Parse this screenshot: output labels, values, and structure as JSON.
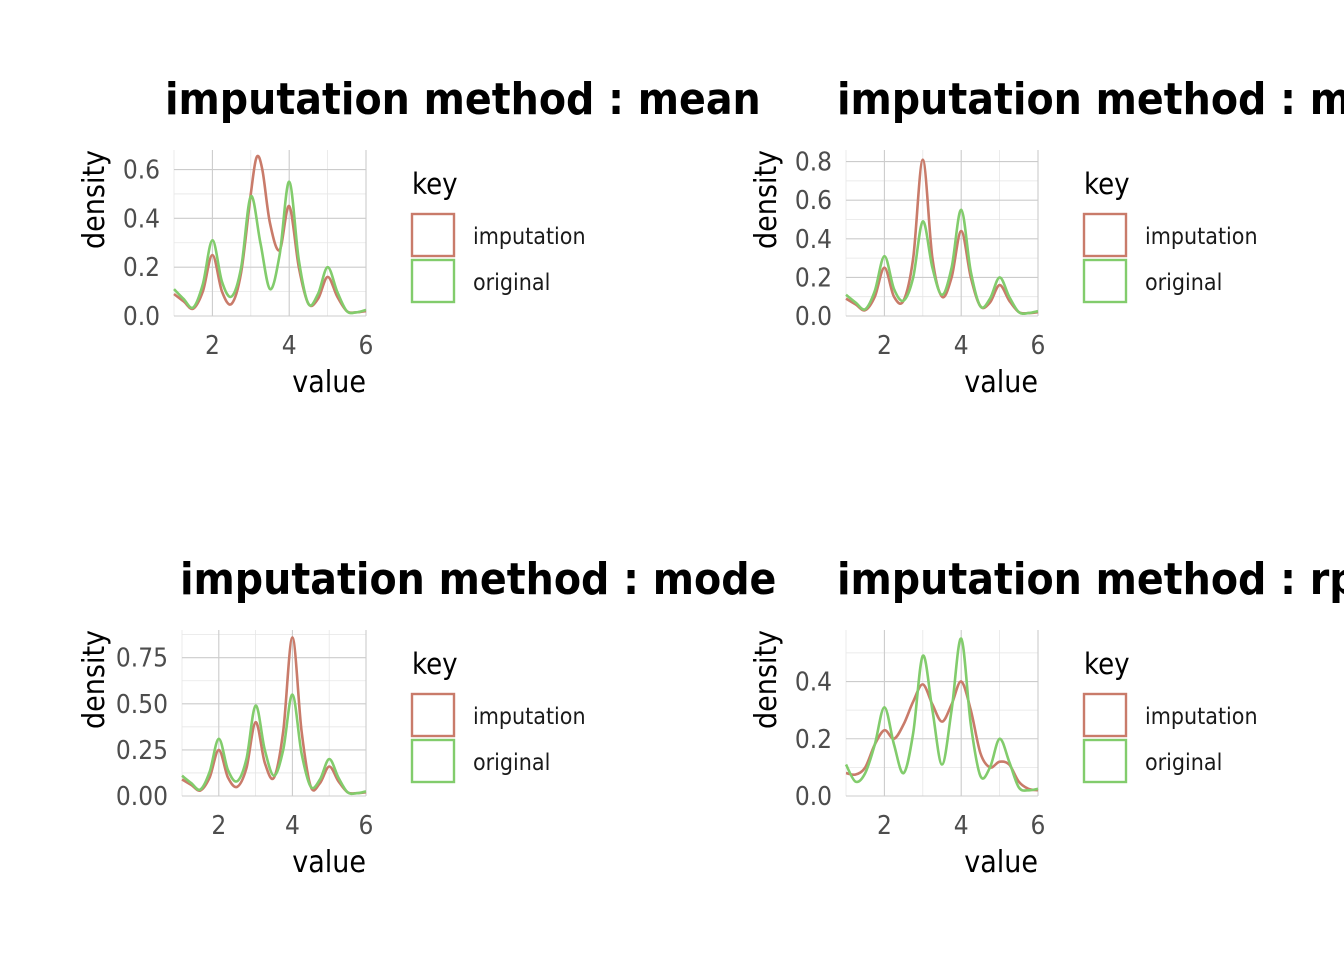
{
  "colors": {
    "imputation": "#C97B6A",
    "original": "#82CC6C"
  },
  "chart_data": [
    {
      "type": "line",
      "title": "imputation method : mean",
      "xlabel": "value",
      "ylabel": "density",
      "xlim": [
        1,
        6
      ],
      "ylim": [
        0,
        0.68
      ],
      "x_ticks": [
        2,
        4,
        6
      ],
      "x_tick_labels": [
        "2",
        "4",
        "6"
      ],
      "y_ticks": [
        0,
        0.2,
        0.4,
        0.6
      ],
      "y_tick_labels": [
        "0.0",
        "0.2",
        "0.4",
        "0.6"
      ],
      "legend": {
        "title": "key",
        "entries": [
          "imputation",
          "original"
        ],
        "position": "right"
      },
      "series": [
        {
          "name": "imputation",
          "x": [
            1.0,
            1.25,
            1.5,
            1.75,
            2.0,
            2.25,
            2.5,
            2.75,
            3.0,
            3.15,
            3.3,
            3.5,
            3.75,
            4.0,
            4.25,
            4.5,
            4.75,
            5.0,
            5.25,
            5.5,
            5.75,
            6.0
          ],
          "y": [
            0.09,
            0.06,
            0.03,
            0.1,
            0.25,
            0.1,
            0.05,
            0.18,
            0.5,
            0.65,
            0.6,
            0.38,
            0.27,
            0.45,
            0.2,
            0.05,
            0.07,
            0.16,
            0.08,
            0.02,
            0.015,
            0.02
          ]
        },
        {
          "name": "original",
          "x": [
            1.0,
            1.25,
            1.5,
            1.75,
            2.0,
            2.25,
            2.5,
            2.75,
            3.0,
            3.25,
            3.5,
            3.75,
            4.0,
            4.25,
            4.5,
            4.75,
            5.0,
            5.25,
            5.5,
            5.75,
            6.0
          ],
          "y": [
            0.11,
            0.07,
            0.035,
            0.13,
            0.31,
            0.14,
            0.08,
            0.2,
            0.49,
            0.3,
            0.11,
            0.25,
            0.55,
            0.23,
            0.05,
            0.09,
            0.2,
            0.1,
            0.02,
            0.015,
            0.025
          ]
        }
      ]
    },
    {
      "type": "line",
      "title": "imputation method : median",
      "xlabel": "value",
      "ylabel": "density",
      "xlim": [
        1,
        6
      ],
      "ylim": [
        0,
        0.86
      ],
      "x_ticks": [
        2,
        4,
        6
      ],
      "x_tick_labels": [
        "2",
        "4",
        "6"
      ],
      "y_ticks": [
        0,
        0.2,
        0.4,
        0.6,
        0.8
      ],
      "y_tick_labels": [
        "0.0",
        "0.2",
        "0.4",
        "0.6",
        "0.8"
      ],
      "legend": {
        "title": "key",
        "entries": [
          "imputation",
          "original"
        ],
        "position": "right"
      },
      "series": [
        {
          "name": "imputation",
          "x": [
            1.0,
            1.25,
            1.5,
            1.75,
            2.0,
            2.25,
            2.5,
            2.75,
            3.0,
            3.25,
            3.5,
            3.75,
            4.0,
            4.25,
            4.5,
            4.75,
            5.0,
            5.25,
            5.5,
            5.75,
            6.0
          ],
          "y": [
            0.09,
            0.06,
            0.03,
            0.1,
            0.25,
            0.1,
            0.08,
            0.3,
            0.81,
            0.3,
            0.1,
            0.2,
            0.44,
            0.2,
            0.05,
            0.07,
            0.16,
            0.08,
            0.02,
            0.015,
            0.02
          ]
        },
        {
          "name": "original",
          "x": [
            1.0,
            1.25,
            1.5,
            1.75,
            2.0,
            2.25,
            2.5,
            2.75,
            3.0,
            3.25,
            3.5,
            3.75,
            4.0,
            4.25,
            4.5,
            4.75,
            5.0,
            5.25,
            5.5,
            5.75,
            6.0
          ],
          "y": [
            0.11,
            0.07,
            0.035,
            0.13,
            0.31,
            0.14,
            0.08,
            0.2,
            0.49,
            0.25,
            0.11,
            0.25,
            0.55,
            0.23,
            0.05,
            0.09,
            0.2,
            0.1,
            0.02,
            0.015,
            0.025
          ]
        }
      ]
    },
    {
      "type": "line",
      "title": "imputation method : mode",
      "xlabel": "value",
      "ylabel": "density",
      "xlim": [
        1,
        6
      ],
      "ylim": [
        0,
        0.9
      ],
      "x_ticks": [
        2,
        4,
        6
      ],
      "x_tick_labels": [
        "2",
        "4",
        "6"
      ],
      "y_ticks": [
        0,
        0.25,
        0.5,
        0.75
      ],
      "y_tick_labels": [
        "0.00",
        "0.25",
        "0.50",
        "0.75"
      ],
      "legend": {
        "title": "key",
        "entries": [
          "imputation",
          "original"
        ],
        "position": "right"
      },
      "series": [
        {
          "name": "imputation",
          "x": [
            1.0,
            1.25,
            1.5,
            1.75,
            2.0,
            2.25,
            2.5,
            2.75,
            3.0,
            3.25,
            3.5,
            3.75,
            4.0,
            4.25,
            4.5,
            4.75,
            5.0,
            5.25,
            5.5,
            5.75,
            6.0
          ],
          "y": [
            0.09,
            0.06,
            0.03,
            0.1,
            0.25,
            0.1,
            0.05,
            0.15,
            0.4,
            0.18,
            0.1,
            0.35,
            0.86,
            0.35,
            0.05,
            0.07,
            0.16,
            0.08,
            0.02,
            0.015,
            0.02
          ]
        },
        {
          "name": "original",
          "x": [
            1.0,
            1.25,
            1.5,
            1.75,
            2.0,
            2.25,
            2.5,
            2.75,
            3.0,
            3.25,
            3.5,
            3.75,
            4.0,
            4.25,
            4.5,
            4.75,
            5.0,
            5.25,
            5.5,
            5.75,
            6.0
          ],
          "y": [
            0.11,
            0.07,
            0.035,
            0.13,
            0.31,
            0.14,
            0.08,
            0.2,
            0.49,
            0.25,
            0.11,
            0.25,
            0.55,
            0.23,
            0.05,
            0.09,
            0.2,
            0.1,
            0.02,
            0.015,
            0.025
          ]
        }
      ]
    },
    {
      "type": "line",
      "title": "imputation method : rpart",
      "xlabel": "value",
      "ylabel": "density",
      "xlim": [
        1,
        6
      ],
      "ylim": [
        0,
        0.58
      ],
      "x_ticks": [
        2,
        4,
        6
      ],
      "x_tick_labels": [
        "2",
        "4",
        "6"
      ],
      "y_ticks": [
        0,
        0.2,
        0.4
      ],
      "y_tick_labels": [
        "0.0",
        "0.2",
        "0.4"
      ],
      "legend": {
        "title": "key",
        "entries": [
          "imputation",
          "original"
        ],
        "position": "right"
      },
      "series": [
        {
          "name": "imputation",
          "x": [
            1.0,
            1.25,
            1.5,
            1.75,
            2.0,
            2.25,
            2.5,
            2.75,
            3.0,
            3.25,
            3.5,
            3.75,
            4.0,
            4.25,
            4.5,
            4.75,
            5.0,
            5.25,
            5.5,
            5.75,
            6.0
          ],
          "y": [
            0.08,
            0.075,
            0.1,
            0.18,
            0.23,
            0.2,
            0.25,
            0.33,
            0.39,
            0.32,
            0.26,
            0.32,
            0.4,
            0.3,
            0.15,
            0.1,
            0.12,
            0.11,
            0.05,
            0.025,
            0.02
          ]
        },
        {
          "name": "original",
          "x": [
            1.0,
            1.25,
            1.5,
            1.75,
            2.0,
            2.25,
            2.5,
            2.75,
            3.0,
            3.25,
            3.5,
            3.75,
            4.0,
            4.25,
            4.5,
            4.75,
            5.0,
            5.25,
            5.5,
            5.75,
            6.0
          ],
          "y": [
            0.11,
            0.05,
            0.08,
            0.18,
            0.31,
            0.18,
            0.08,
            0.22,
            0.49,
            0.3,
            0.11,
            0.3,
            0.55,
            0.25,
            0.07,
            0.1,
            0.2,
            0.12,
            0.03,
            0.02,
            0.025
          ]
        }
      ]
    }
  ]
}
